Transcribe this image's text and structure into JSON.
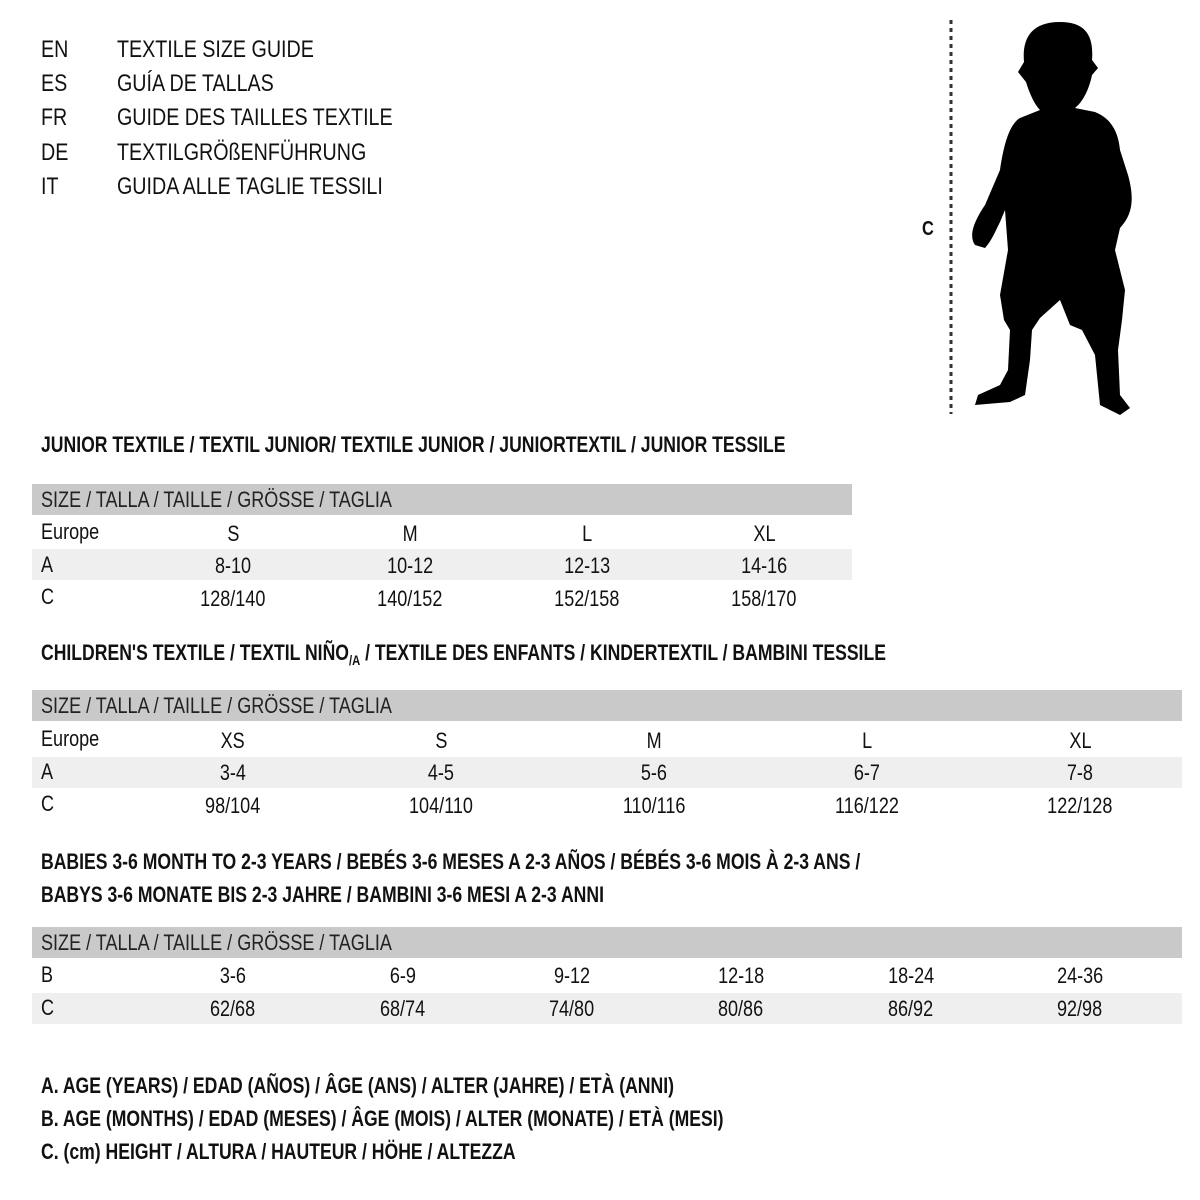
{
  "title_lines": [
    {
      "code": "EN",
      "text": "TEXTILE SIZE GUIDE"
    },
    {
      "code": "ES",
      "text": "GUÍA DE TALLAS"
    },
    {
      "code": "FR",
      "text": "GUIDE DES TAILLES TEXTILE"
    },
    {
      "code": "DE",
      "text": "TEXTILGRÖßENFÜHRUNG"
    },
    {
      "code": "IT",
      "text": "GUIDA ALLE TAGLIE TESSILI"
    }
  ],
  "figure": {
    "label": "C",
    "icon": "child-silhouette-icon"
  },
  "size_header": "SIZE / TALLA / TAILLE / GRÖSSE / TAGLIA",
  "colors": {
    "header_bar": "#c9c9c9",
    "shaded_row": "#efefef"
  },
  "junior": {
    "heading": "JUNIOR TEXTILE / TEXTIL JUNIOR/ TEXTILE JUNIOR / JUNIORTEXTIL / JUNIOR TESSILE",
    "rows": [
      {
        "label": "Europe",
        "values": [
          "S",
          "M",
          "L",
          "XL"
        ]
      },
      {
        "label": "A",
        "values": [
          "8-10",
          "10-12",
          "12-13",
          "14-16"
        ]
      },
      {
        "label": "C",
        "values": [
          "128/140",
          "140/152",
          "152/158",
          "158/170"
        ]
      }
    ]
  },
  "children": {
    "heading_a": "CHILDREN'S TEXTILE / TEXTIL NIÑO",
    "heading_sub": "/A",
    "heading_b": " / TEXTILE DES ENFANTS / KINDERTEXTIL / BAMBINI TESSILE",
    "rows": [
      {
        "label": "Europe",
        "values": [
          "XS",
          "S",
          "M",
          "L",
          "XL"
        ]
      },
      {
        "label": "A",
        "values": [
          "3-4",
          "4-5",
          "5-6",
          "6-7",
          "7-8"
        ]
      },
      {
        "label": "C",
        "values": [
          "98/104",
          "104/110",
          "110/116",
          "116/122",
          "122/128"
        ]
      }
    ]
  },
  "babies": {
    "heading_1": "BABIES 3-6 MONTH TO 2-3 YEARS / BEBÉS 3-6 MESES A 2-3 AÑOS / BÉBÉS 3-6 MOIS À 2-3 ANS /",
    "heading_2": "BABYS 3-6 MONATE BIS 2-3 JAHRE / BAMBINI 3-6 MESI A 2-3 ANNI",
    "rows": [
      {
        "label": "B",
        "values": [
          "3-6",
          "6-9",
          "9-12",
          "12-18",
          "18-24",
          "24-36"
        ]
      },
      {
        "label": "C",
        "values": [
          "62/68",
          "68/74",
          "74/80",
          "80/86",
          "86/92",
          "92/98"
        ]
      }
    ]
  },
  "legend": [
    "A. AGE (YEARS) / EDAD (AÑOS) / ÂGE (ANS) / ALTER (JAHRE) / ETÀ (ANNI)",
    "B. AGE (MONTHS) / EDAD (MESES) / ÂGE (MOIS) / ALTER (MONATE) / ETÀ (MESI)",
    "C. (cm) HEIGHT / ALTURA / HAUTEUR / HÖHE / ALTEZZA"
  ]
}
